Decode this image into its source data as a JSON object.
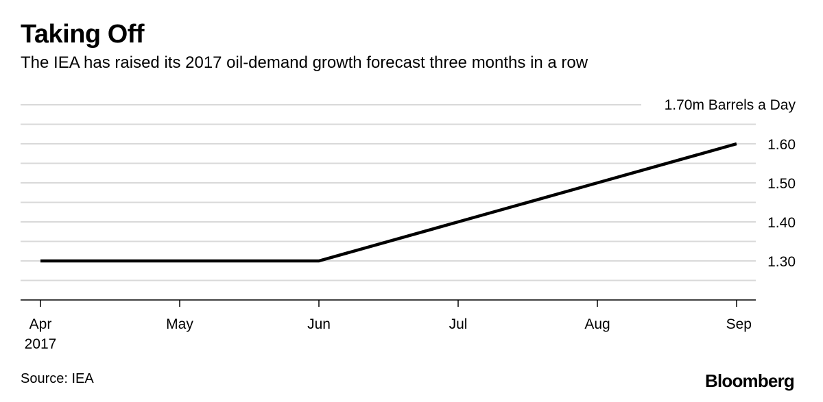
{
  "header": {
    "title": "Taking Off",
    "subtitle": "The IEA has raised its 2017 oil-demand growth forecast three months in a row"
  },
  "footer": {
    "source": "Source: IEA",
    "brand": "Bloomberg"
  },
  "chart_data": {
    "type": "line",
    "title": "Taking Off",
    "subtitle": "The IEA has raised its 2017 oil-demand growth forecast three months in a row",
    "xlabel": "",
    "ylabel": "",
    "unit_label": "1.70m Barrels a Day",
    "categories": [
      "Apr",
      "May",
      "Jun",
      "Jul",
      "Aug",
      "Sep"
    ],
    "category_sublabels": [
      "2017",
      "",
      "",
      "",
      "",
      ""
    ],
    "series": [
      {
        "values": [
          1.3,
          1.3,
          1.3,
          1.4,
          1.5,
          1.6
        ]
      }
    ],
    "y_ticks": [
      1.3,
      1.4,
      1.5,
      1.6
    ],
    "y_tick_labels": [
      "1.30",
      "1.40",
      "1.50",
      "1.60"
    ],
    "ylim": [
      1.2,
      1.7
    ],
    "grid": true,
    "y_axis_position": "right",
    "line_color": "#000000",
    "grid_color": "#d9d9d9"
  }
}
